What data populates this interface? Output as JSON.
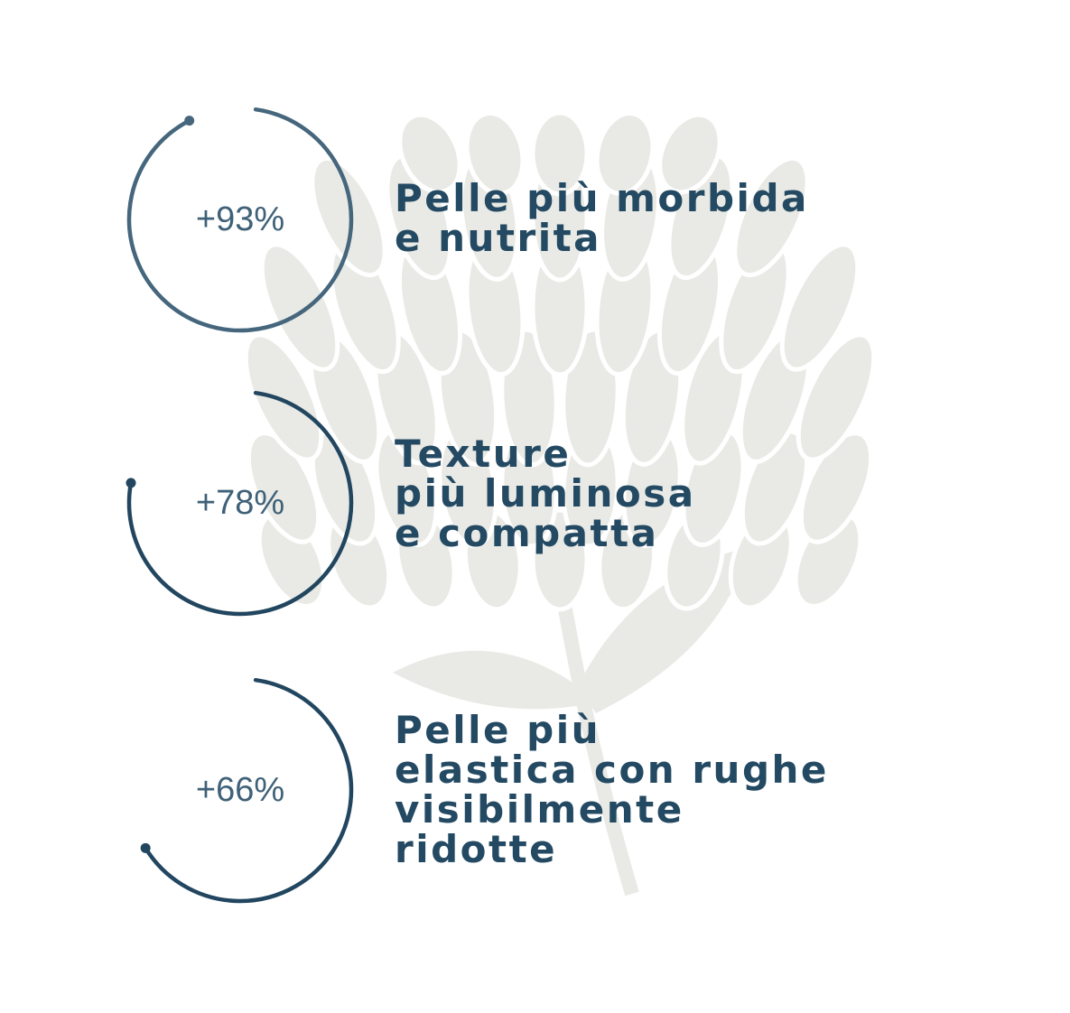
{
  "colors": {
    "ring_first": "#45667c",
    "ring": "#22465f",
    "text": "#244a63",
    "flower": "#e9eae5"
  },
  "background_icon": "protea-flower-illustration",
  "stats": [
    {
      "value": 93,
      "label_text": "+93%",
      "lines": [
        "Pelle più morbida",
        "e nutrita"
      ]
    },
    {
      "value": 78,
      "label_text": "+78%",
      "lines": [
        "Texture",
        "più luminosa",
        "e compatta"
      ]
    },
    {
      "value": 66,
      "label_text": "+66%",
      "lines": [
        "Pelle più",
        "elastica con rughe",
        "visibilmente",
        "ridotte"
      ]
    }
  ]
}
